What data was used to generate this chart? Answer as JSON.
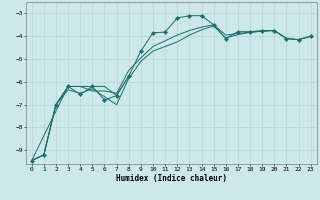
{
  "xlabel": "Humidex (Indice chaleur)",
  "background_color": "#cce8e8",
  "line_color": "#1a6e6e",
  "xlim": [
    -0.5,
    23.5
  ],
  "ylim": [
    -9.6,
    -2.5
  ],
  "yticks": [
    -9,
    -8,
    -7,
    -6,
    -5,
    -4,
    -3
  ],
  "xticks": [
    0,
    1,
    2,
    3,
    4,
    5,
    6,
    7,
    8,
    9,
    10,
    11,
    12,
    13,
    14,
    15,
    16,
    17,
    18,
    19,
    20,
    21,
    22,
    23
  ],
  "series_main": {
    "x": [
      0,
      1,
      2,
      3,
      4,
      5,
      6,
      7,
      8,
      9,
      10,
      11,
      12,
      13,
      14,
      15,
      16,
      17,
      18,
      19,
      20,
      21,
      22,
      23
    ],
    "y": [
      -9.45,
      -9.2,
      -7.0,
      -6.2,
      -6.55,
      -6.2,
      -6.8,
      -6.6,
      -5.75,
      -4.65,
      -3.85,
      -3.82,
      -3.2,
      -3.1,
      -3.1,
      -3.5,
      -4.1,
      -3.8,
      -3.8,
      -3.75,
      -3.75,
      -4.1,
      -4.15,
      -4.0
    ]
  },
  "series_smooth1": {
    "x": [
      0,
      1,
      2,
      3,
      4,
      5,
      6,
      7,
      8,
      9,
      10,
      11,
      12,
      13,
      14,
      15,
      16,
      17,
      18,
      19,
      20,
      21,
      22,
      23
    ],
    "y": [
      -9.45,
      -9.2,
      -7.0,
      -6.2,
      -6.2,
      -6.4,
      -6.4,
      -6.5,
      -5.5,
      -4.95,
      -4.45,
      -4.2,
      -3.95,
      -3.75,
      -3.6,
      -3.5,
      -3.95,
      -3.88,
      -3.82,
      -3.78,
      -3.75,
      -4.1,
      -4.15,
      -4.0
    ]
  },
  "series_smooth2": {
    "x": [
      0,
      1,
      2,
      3,
      4,
      5,
      6,
      7,
      8,
      9,
      10,
      11,
      12,
      13,
      14,
      15,
      16,
      17,
      18,
      19,
      20,
      21,
      22,
      23
    ],
    "y": [
      -9.45,
      -9.2,
      -7.0,
      -6.35,
      -6.5,
      -6.3,
      -6.65,
      -7.0,
      -5.85,
      -5.1,
      -4.65,
      -4.45,
      -4.25,
      -3.95,
      -3.72,
      -3.55,
      -4.08,
      -3.93,
      -3.83,
      -3.78,
      -3.75,
      -4.1,
      -4.15,
      -4.0
    ]
  },
  "series_extra": {
    "x": [
      0,
      3,
      4,
      5,
      6,
      7,
      8
    ],
    "y": [
      -9.45,
      -6.2,
      -6.2,
      -6.2,
      -6.2,
      -6.6,
      -5.75
    ]
  }
}
